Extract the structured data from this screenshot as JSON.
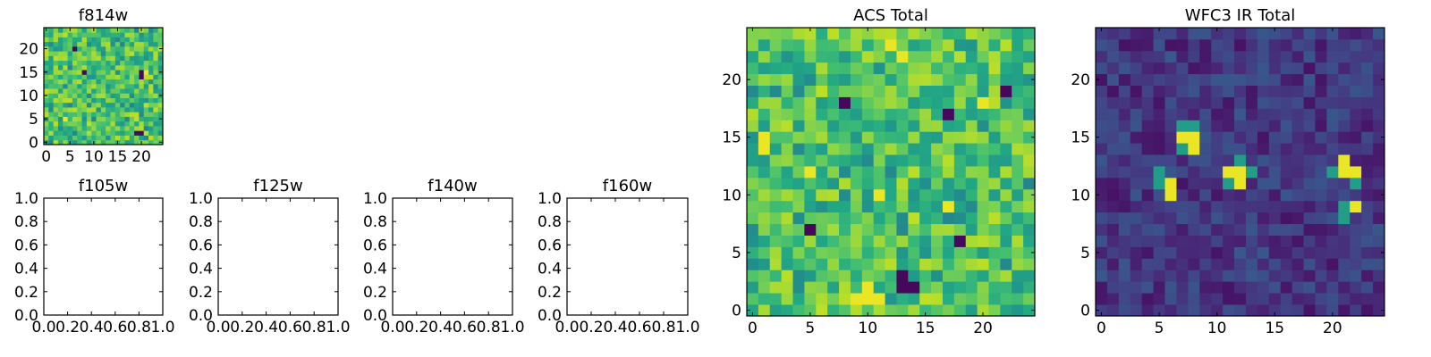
{
  "chart_data": [
    {
      "type": "heatmap",
      "title": "f814w",
      "grid_size": [
        25,
        25
      ],
      "xlim": [
        -0.5,
        24.5
      ],
      "ylim": [
        -0.5,
        24.5
      ],
      "xticks": [
        0,
        5,
        10,
        15,
        20
      ],
      "yticks": [
        0,
        5,
        10,
        15,
        20
      ],
      "colormap": "viridis",
      "value_range": [
        0,
        1
      ],
      "values_note": "",
      "seed": 814,
      "profile": "acs"
    },
    {
      "type": "empty",
      "title": "f105w",
      "xlim": [
        0,
        1
      ],
      "ylim": [
        0,
        1
      ],
      "xticks": [
        "0.0",
        "0.2",
        "0.4",
        "0.6",
        "0.8",
        "1.0"
      ],
      "yticks": [
        "0.0",
        "0.2",
        "0.4",
        "0.6",
        "0.8",
        "1.0"
      ]
    },
    {
      "type": "empty",
      "title": "f125w",
      "xlim": [
        0,
        1
      ],
      "ylim": [
        0,
        1
      ],
      "xticks": [
        "0.0",
        "0.2",
        "0.4",
        "0.6",
        "0.8",
        "1.0"
      ],
      "yticks": [
        "0.0",
        "0.2",
        "0.4",
        "0.6",
        "0.8",
        "1.0"
      ]
    },
    {
      "type": "empty",
      "title": "f140w",
      "xlim": [
        0,
        1
      ],
      "ylim": [
        0,
        1
      ],
      "xticks": [
        "0.0",
        "0.2",
        "0.4",
        "0.6",
        "0.8",
        "1.0"
      ],
      "yticks": [
        "0.0",
        "0.2",
        "0.4",
        "0.6",
        "0.8",
        "1.0"
      ]
    },
    {
      "type": "empty",
      "title": "f160w",
      "xlim": [
        0,
        1
      ],
      "ylim": [
        0,
        1
      ],
      "xticks": [
        "0.0",
        "0.2",
        "0.4",
        "0.6",
        "0.8",
        "1.0"
      ],
      "yticks": [
        "0.0",
        "0.2",
        "0.4",
        "0.6",
        "0.8",
        "1.0"
      ]
    },
    {
      "type": "heatmap",
      "title": "ACS Total",
      "grid_size": [
        25,
        25
      ],
      "xlim": [
        -0.5,
        24.5
      ],
      "ylim": [
        -0.5,
        24.5
      ],
      "xticks": [
        0,
        5,
        10,
        15,
        20
      ],
      "yticks": [
        0,
        5,
        10,
        15,
        20
      ],
      "colormap": "viridis",
      "value_range": [
        0,
        1
      ],
      "seed": 1234,
      "profile": "acs",
      "hot_cells": [
        [
          10,
          2
        ],
        [
          10,
          1
        ],
        [
          9,
          1
        ],
        [
          11,
          1
        ],
        [
          12,
          23
        ],
        [
          13,
          22
        ],
        [
          1,
          15
        ],
        [
          1,
          14
        ],
        [
          17,
          9
        ],
        [
          20,
          18
        ],
        [
          5,
          12
        ],
        [
          11,
          10
        ]
      ],
      "dark_cells": [
        [
          5,
          7
        ],
        [
          13,
          3
        ],
        [
          14,
          2
        ],
        [
          17,
          17
        ],
        [
          22,
          19
        ],
        [
          18,
          6
        ],
        [
          8,
          18
        ],
        [
          13,
          2
        ]
      ]
    },
    {
      "type": "heatmap",
      "title": "WFC3 IR Total",
      "grid_size": [
        25,
        25
      ],
      "xlim": [
        -0.5,
        24.5
      ],
      "ylim": [
        -0.5,
        24.5
      ],
      "xticks": [
        0,
        5,
        10,
        15,
        20
      ],
      "yticks": [
        0,
        5,
        10,
        15,
        20
      ],
      "colormap": "viridis",
      "value_range": [
        0,
        1
      ],
      "seed": 42,
      "profile": "ir",
      "hot_cells": [
        [
          7,
          15
        ],
        [
          8,
          15
        ],
        [
          8,
          14
        ],
        [
          6,
          11
        ],
        [
          6,
          10
        ],
        [
          11,
          12
        ],
        [
          12,
          12
        ],
        [
          12,
          11
        ],
        [
          21,
          12
        ],
        [
          22,
          12
        ],
        [
          22,
          9
        ],
        [
          21,
          13
        ]
      ],
      "warm_cells": [
        [
          7,
          16
        ],
        [
          8,
          16
        ],
        [
          7,
          14
        ],
        [
          5,
          12
        ],
        [
          5,
          11
        ],
        [
          21,
          9
        ],
        [
          21,
          8
        ],
        [
          12,
          13
        ],
        [
          20,
          12
        ],
        [
          22,
          11
        ],
        [
          11,
          11
        ],
        [
          13,
          12
        ]
      ]
    }
  ]
}
